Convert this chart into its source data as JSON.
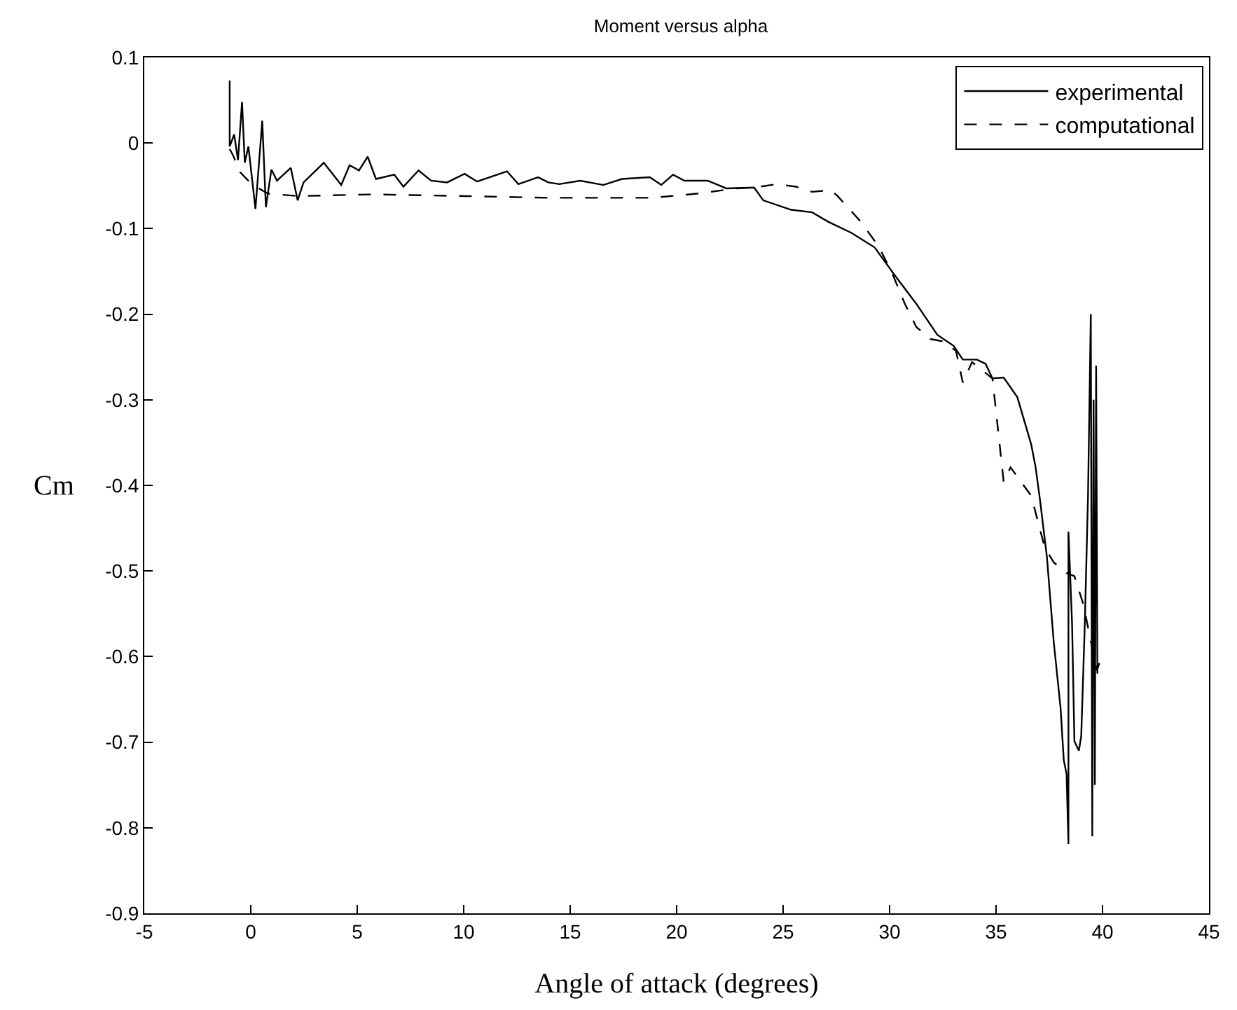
{
  "chart_data": {
    "type": "line",
    "title": "Moment versus alpha",
    "xlabel": "Angle of attack (degrees)",
    "ylabel": "Cm",
    "xlim": [
      -5,
      45
    ],
    "xticks": [
      -5,
      0,
      5,
      10,
      15,
      20,
      25,
      30,
      35,
      40,
      45
    ],
    "ylim": [
      -0.9,
      0.1
    ],
    "yticks": [
      -0.9,
      -0.8,
      -0.7,
      -0.6,
      -0.5,
      -0.4,
      -0.3,
      -0.2,
      -0.1,
      0,
      0.1
    ],
    "grid": false,
    "legend": "top right",
    "marker": "none",
    "series": [
      {
        "name": "experimental",
        "color": "#000000",
        "line_style": "solid",
        "x": [
          -0.99,
          -0.99,
          -0.78,
          -0.6,
          -0.41,
          -0.28,
          -0.11,
          0.22,
          0.54,
          0.71,
          0.97,
          1.23,
          1.88,
          2.2,
          2.48,
          3.43,
          4.25,
          4.64,
          5.08,
          5.49,
          5.88,
          6.74,
          7.17,
          7.88,
          8.47,
          9.22,
          10.04,
          10.63,
          12.03,
          12.57,
          13.5,
          13.97,
          14.49,
          15.47,
          16.56,
          17.43,
          18.74,
          19.28,
          19.83,
          20.37,
          21.46,
          22.33,
          23.64,
          24.07,
          25.38,
          26.36,
          27.12,
          28.21,
          29.3,
          30.17,
          31.26,
          32.24,
          33.01,
          33.44,
          34.1,
          34.51,
          34.83,
          35.36,
          36.0,
          36.65,
          36.86,
          37.07,
          37.39,
          37.71,
          38.03,
          38.18,
          38.31,
          38.4,
          38.4,
          38.57,
          38.68,
          38.89,
          39.0,
          39.17,
          39.32,
          39.45,
          39.52,
          39.58,
          39.64,
          39.7,
          39.76
        ],
        "values": [
          0.073,
          -0.004,
          0.01,
          -0.02,
          0.048,
          -0.023,
          -0.004,
          -0.077,
          0.026,
          -0.075,
          -0.031,
          -0.044,
          -0.029,
          -0.067,
          -0.046,
          -0.023,
          -0.049,
          -0.026,
          -0.032,
          -0.016,
          -0.042,
          -0.037,
          -0.051,
          -0.032,
          -0.044,
          -0.046,
          -0.036,
          -0.045,
          -0.033,
          -0.048,
          -0.04,
          -0.046,
          -0.048,
          -0.044,
          -0.049,
          -0.042,
          -0.04,
          -0.049,
          -0.037,
          -0.044,
          -0.044,
          -0.053,
          -0.052,
          -0.067,
          -0.078,
          -0.081,
          -0.092,
          -0.105,
          -0.122,
          -0.152,
          -0.188,
          -0.224,
          -0.237,
          -0.253,
          -0.253,
          -0.258,
          -0.275,
          -0.274,
          -0.297,
          -0.352,
          -0.379,
          -0.418,
          -0.484,
          -0.583,
          -0.66,
          -0.721,
          -0.737,
          -0.819,
          -0.454,
          -0.561,
          -0.699,
          -0.71,
          -0.693,
          -0.561,
          -0.412,
          -0.2,
          -0.81,
          -0.3,
          -0.75,
          -0.26,
          -0.62
        ]
      },
      {
        "name": "computational",
        "color": "#000000",
        "line_style": "dashed",
        "x": [
          -0.99,
          -0.82,
          -0.5,
          0.04,
          0.8,
          2.2,
          5.77,
          10.09,
          13.97,
          18.85,
          21.02,
          22.77,
          23.64,
          24.73,
          25.6,
          26.36,
          27.23,
          27.56,
          28.65,
          29.52,
          30.17,
          30.72,
          31.26,
          31.92,
          32.57,
          33.12,
          33.44,
          33.87,
          34.83,
          35.36,
          35.68,
          36.65,
          37.29,
          37.71,
          38.35,
          38.68,
          39.1,
          39.42,
          39.74,
          39.96
        ],
        "values": [
          -0.007,
          -0.015,
          -0.034,
          -0.048,
          -0.059,
          -0.062,
          -0.06,
          -0.062,
          -0.064,
          -0.064,
          -0.059,
          -0.053,
          -0.052,
          -0.048,
          -0.051,
          -0.057,
          -0.055,
          -0.062,
          -0.092,
          -0.122,
          -0.155,
          -0.188,
          -0.215,
          -0.229,
          -0.232,
          -0.243,
          -0.28,
          -0.256,
          -0.275,
          -0.396,
          -0.379,
          -0.412,
          -0.473,
          -0.49,
          -0.503,
          -0.506,
          -0.539,
          -0.578,
          -0.616,
          -0.6
        ]
      }
    ]
  }
}
